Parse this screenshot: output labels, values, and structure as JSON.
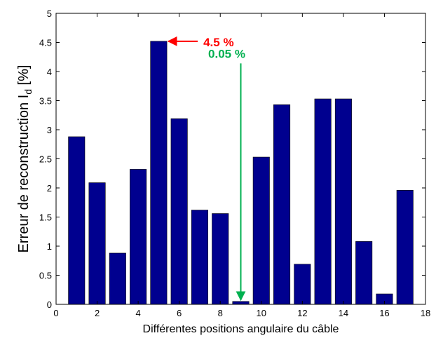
{
  "chart_data": {
    "type": "bar",
    "x": [
      1,
      2,
      3,
      4,
      5,
      6,
      7,
      8,
      9,
      10,
      11,
      12,
      13,
      14,
      15,
      16,
      17
    ],
    "values": [
      2.88,
      2.09,
      0.88,
      2.32,
      4.52,
      3.19,
      1.62,
      1.56,
      0.05,
      2.53,
      3.43,
      0.69,
      3.53,
      3.53,
      1.08,
      0.18,
      1.96
    ],
    "xlabel": "Différentes positions angulaire du câble",
    "ylabel": "Erreur de reconstruction I",
    "ylabel_subscript": "d",
    "ylabel_unit": " [%]",
    "xlim": [
      0,
      18
    ],
    "ylim": [
      0,
      5
    ],
    "xticks": [
      0,
      2,
      4,
      6,
      8,
      10,
      12,
      14,
      16,
      18
    ],
    "yticks": [
      0,
      0.5,
      1,
      1.5,
      2,
      2.5,
      3,
      3.5,
      4,
      4.5,
      5
    ],
    "bar_color": "#00008f",
    "grid": false,
    "annotations": [
      {
        "text": "4.5 %",
        "color": "#ff0000",
        "target_x": 5,
        "target_y": 4.52
      },
      {
        "text": "0.05 %",
        "color": "#00b050",
        "target_x": 9,
        "target_y": 0.05
      }
    ]
  }
}
